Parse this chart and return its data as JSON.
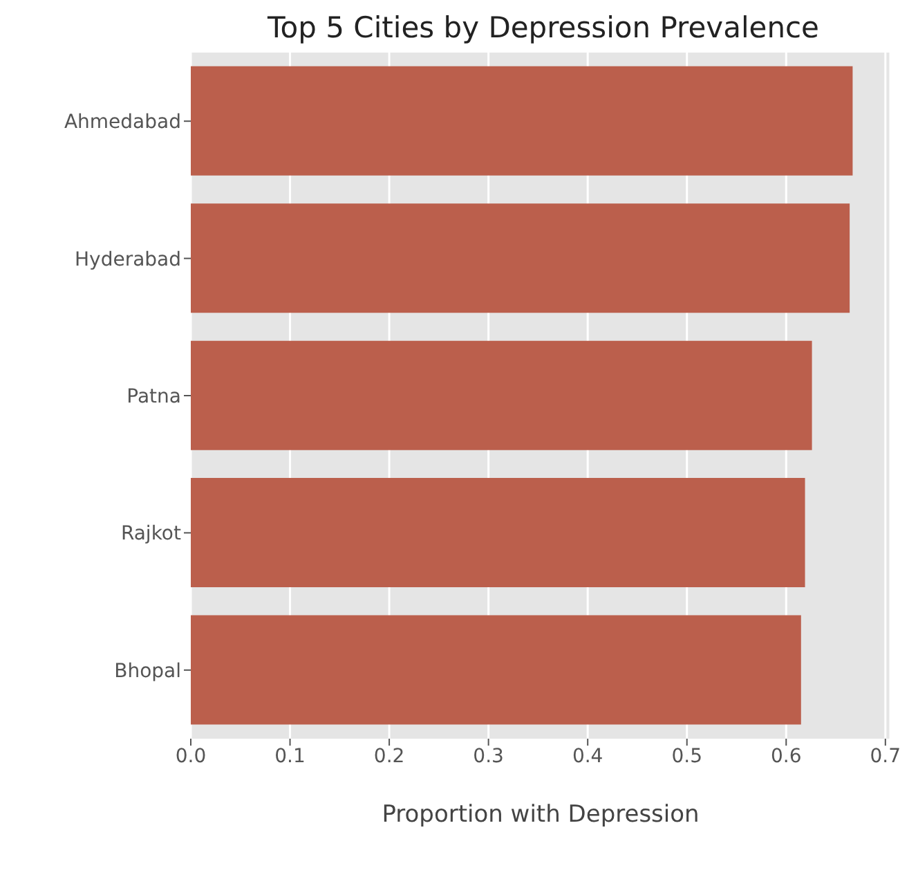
{
  "chart_data": {
    "type": "bar",
    "orientation": "horizontal",
    "title": "Top 5 Cities by Depression Prevalence",
    "xlabel": "Proportion with Depression",
    "categories": [
      "Ahmedabad",
      "Hyderabad",
      "Patna",
      "Rajkot",
      "Bhopal"
    ],
    "values": [
      0.667,
      0.664,
      0.626,
      0.619,
      0.615
    ],
    "color": "#bb5f4c",
    "xlim": [
      0,
      0.705
    ],
    "xticks": [
      {
        "value": 0,
        "label": "0.0"
      },
      0.1,
      0.2,
      0.3,
      0.4,
      0.5,
      0.6,
      0.7
    ],
    "grid": "x"
  }
}
